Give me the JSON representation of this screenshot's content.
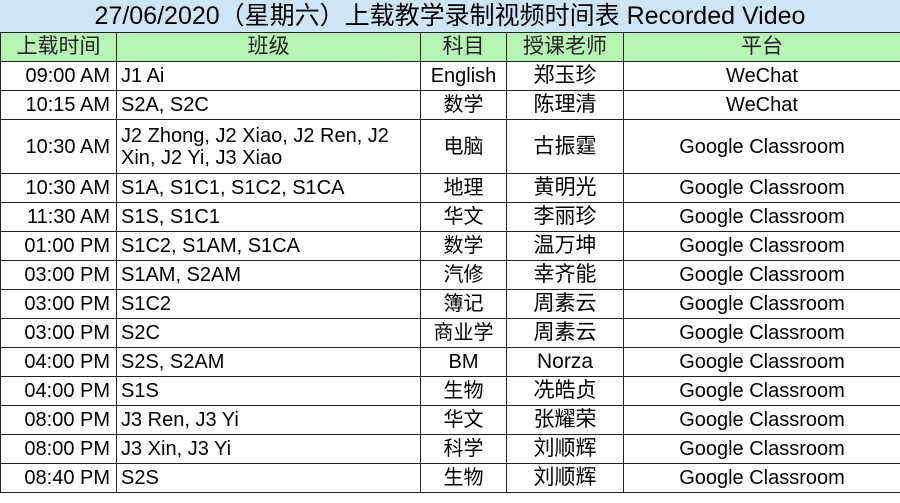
{
  "title": "27/06/2020（星期六）上载教学录制视频时间表 Recorded Video",
  "headers": {
    "time": "上载时间",
    "class": "班级",
    "subject": "科目",
    "teacher": "授课老师",
    "platform": "平台"
  },
  "rows": [
    {
      "time": "09:00 AM",
      "class": "J1 Ai",
      "subject": "English",
      "teacher": "郑玉珍",
      "platform": "WeChat"
    },
    {
      "time": "10:15 AM",
      "class": "S2A, S2C",
      "subject": "数学",
      "teacher": "陈理清",
      "platform": "WeChat"
    },
    {
      "time": "10:30 AM",
      "class": "J2 Zhong, J2 Xiao, J2 Ren, J2 Xin, J2 Yi, J3 Xiao",
      "subject": "电脑",
      "teacher": "古振霆",
      "platform": "Google Classroom"
    },
    {
      "time": "10:30 AM",
      "class": "S1A, S1C1, S1C2, S1CA",
      "subject": "地理",
      "teacher": "黄明光",
      "platform": "Google Classroom"
    },
    {
      "time": "11:30 AM",
      "class": "S1S, S1C1",
      "subject": "华文",
      "teacher": "李丽珍",
      "platform": "Google Classroom"
    },
    {
      "time": "01:00 PM",
      "class": "S1C2, S1AM, S1CA",
      "subject": "数学",
      "teacher": "温万坤",
      "platform": "Google Classroom"
    },
    {
      "time": "03:00 PM",
      "class": "S1AM, S2AM",
      "subject": "汽修",
      "teacher": "幸齐能",
      "platform": "Google Classroom"
    },
    {
      "time": "03:00 PM",
      "class": "S1C2",
      "subject": "簿记",
      "teacher": "周素云",
      "platform": "Google Classroom"
    },
    {
      "time": "03:00 PM",
      "class": "S2C",
      "subject": "商业学",
      "teacher": "周素云",
      "platform": "Google Classroom"
    },
    {
      "time": "04:00 PM",
      "class": "S2S, S2AM",
      "subject": "BM",
      "teacher": "Norza",
      "platform": "Google Classroom"
    },
    {
      "time": "04:00 PM",
      "class": "S1S",
      "subject": "生物",
      "teacher": "冼皓贞",
      "platform": "Google Classroom"
    },
    {
      "time": "08:00 PM",
      "class": "J3 Ren, J3 Yi",
      "subject": "华文",
      "teacher": "张耀荣",
      "platform": "Google Classroom"
    },
    {
      "time": "08:00 PM",
      "class": "J3 Xin, J3 Yi",
      "subject": "科学",
      "teacher": "刘顺辉",
      "platform": "Google Classroom"
    },
    {
      "time": "08:40 PM",
      "class": "S2S",
      "subject": "生物",
      "teacher": "刘顺辉",
      "platform": "Google Classroom"
    }
  ]
}
